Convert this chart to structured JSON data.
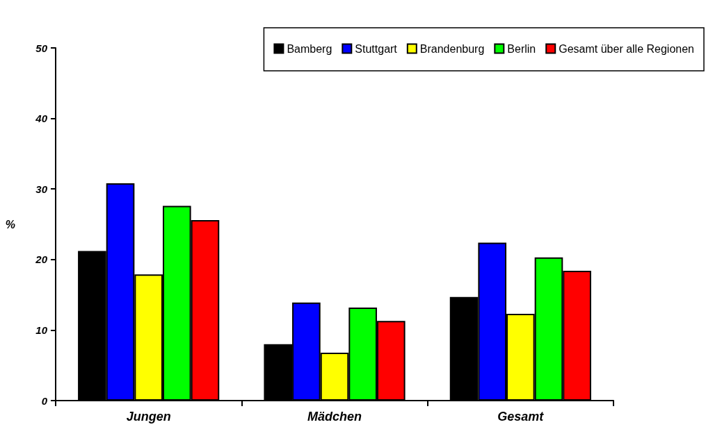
{
  "chart_data": {
    "type": "bar",
    "ylabel": "%",
    "categories": [
      "Jungen",
      "Mädchen",
      "Gesamt"
    ],
    "series": [
      {
        "name": "Bamberg",
        "color": "#000000",
        "values": [
          21.2,
          8.0,
          14.7
        ]
      },
      {
        "name": "Stuttgart",
        "color": "#0000ff",
        "values": [
          30.8,
          13.9,
          22.4
        ]
      },
      {
        "name": "Brandenburg",
        "color": "#ffff00",
        "values": [
          17.9,
          6.8,
          12.3
        ]
      },
      {
        "name": "Berlin",
        "color": "#00ff00",
        "values": [
          27.6,
          13.2,
          20.3
        ]
      },
      {
        "name": "Gesamt über alle Regionen",
        "color": "#ff0000",
        "values": [
          25.6,
          11.3,
          18.4
        ]
      }
    ],
    "ylim": [
      0,
      50
    ],
    "yticks": [
      0,
      10,
      20,
      30,
      40,
      50
    ],
    "grid": false,
    "legend": "top right"
  }
}
